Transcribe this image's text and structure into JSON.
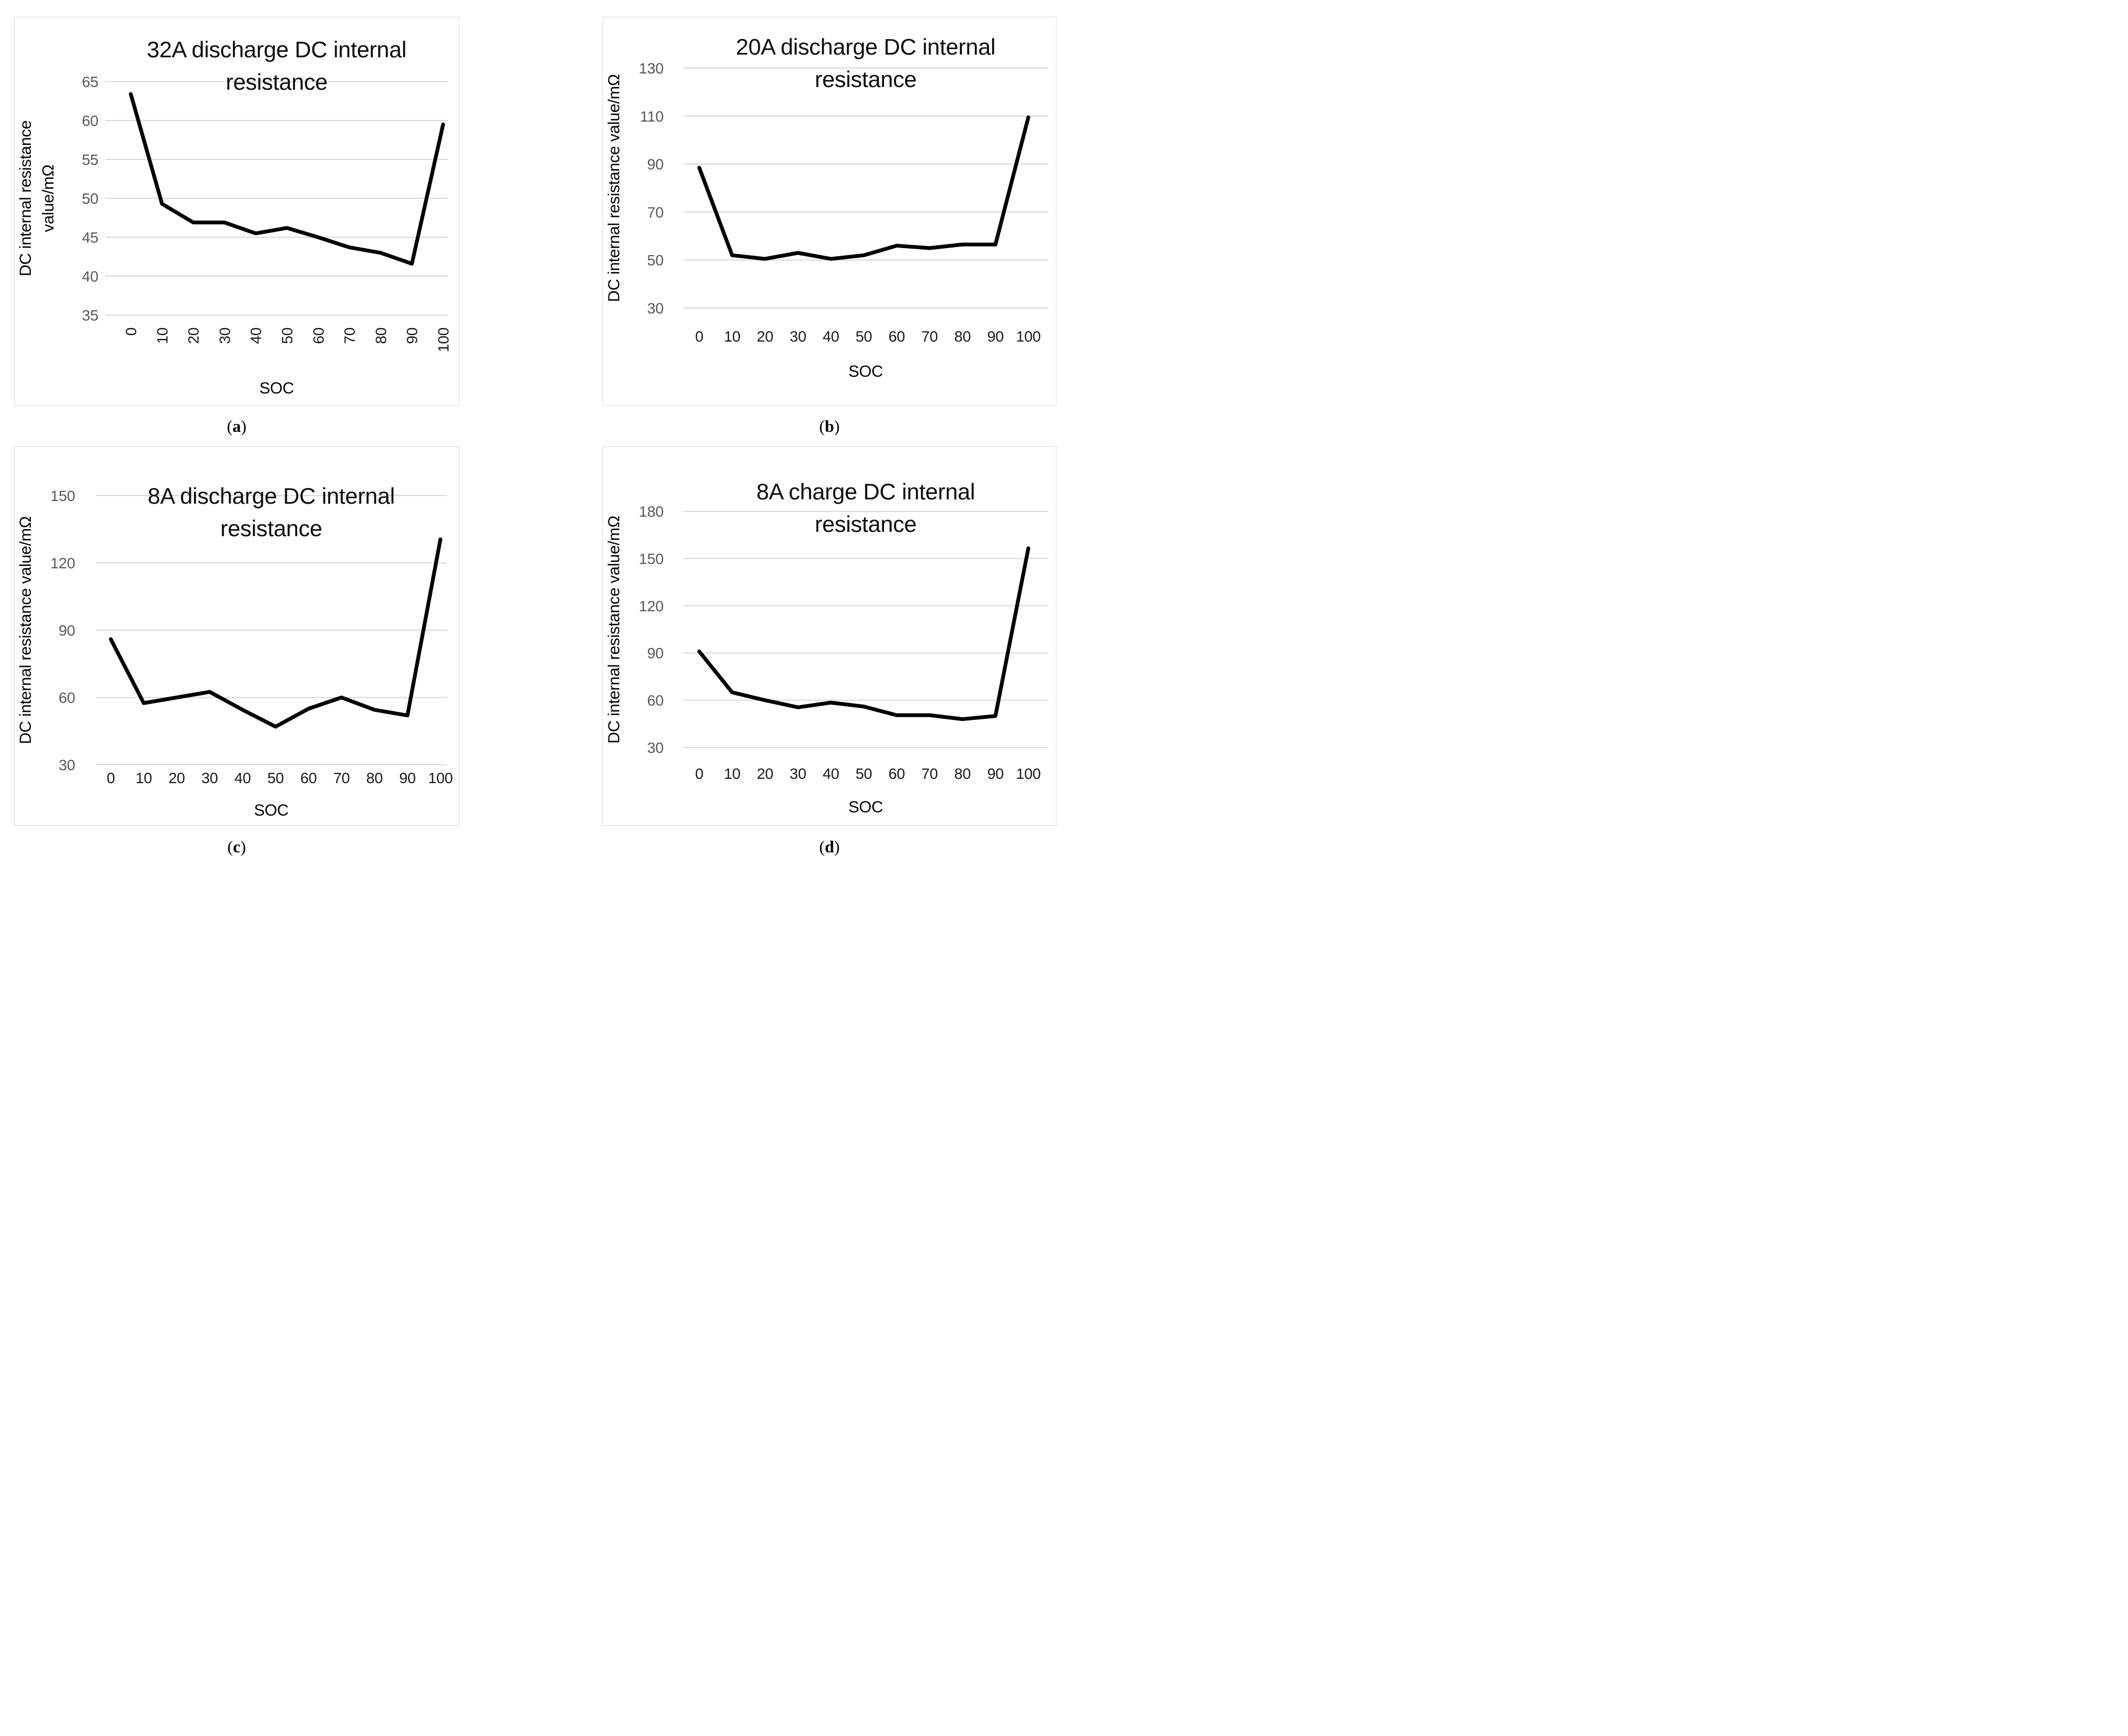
{
  "colors": {
    "background": "#ffffff",
    "panel_border": "#d9d9d9",
    "gridline": "#d9d9d9",
    "series_line": "#000000",
    "y_tick_label": "#595959",
    "x_tick_label": "#1a1a1a",
    "chart_title": "#0d0d0d",
    "axis_title": "#000000"
  },
  "captions": [
    {
      "open": "(",
      "letter": "a",
      "close": ")"
    },
    {
      "open": "(",
      "letter": "b",
      "close": ")"
    },
    {
      "open": "(",
      "letter": "c",
      "close": ")"
    },
    {
      "open": "(",
      "letter": "d",
      "close": ")"
    }
  ],
  "chart_data": [
    {
      "type": "line",
      "panel": "a",
      "title_lines": [
        "32A discharge DC internal",
        "resistance"
      ],
      "y_axis_title_lines": [
        "DC internal resistance",
        "value/mΩ"
      ],
      "x_axis_title": "SOC",
      "categories": [
        0,
        10,
        20,
        30,
        40,
        50,
        60,
        70,
        80,
        90,
        100
      ],
      "values": [
        63.4,
        49.3,
        46.9,
        46.9,
        45.5,
        46.2,
        45.0,
        43.7,
        43.0,
        41.6,
        59.5
      ],
      "ylim": [
        35,
        65
      ],
      "yticks": [
        35,
        40,
        45,
        50,
        55,
        60,
        65
      ],
      "x_tick_rotation": 90,
      "grid": "horizontal",
      "legend": "none"
    },
    {
      "type": "line",
      "panel": "b",
      "title_lines": [
        "20A discharge DC internal",
        "resistance"
      ],
      "y_axis_title_lines": [
        "DC internal resistance value/mΩ"
      ],
      "x_axis_title": "SOC",
      "categories": [
        0,
        10,
        20,
        30,
        40,
        50,
        60,
        70,
        80,
        90,
        100
      ],
      "values": [
        88.5,
        52.0,
        50.5,
        53.0,
        50.5,
        52.0,
        56.0,
        55.0,
        56.5,
        56.5,
        109.5
      ],
      "ylim": [
        30,
        130
      ],
      "yticks": [
        30,
        50,
        70,
        90,
        110,
        130
      ],
      "x_tick_rotation": 0,
      "grid": "horizontal",
      "legend": "none"
    },
    {
      "type": "line",
      "panel": "c",
      "title_lines": [
        "8A discharge DC internal",
        "resistance"
      ],
      "y_axis_title_lines": [
        "DC internal resistance value/mΩ"
      ],
      "x_axis_title": "SOC",
      "categories": [
        0,
        10,
        20,
        30,
        40,
        50,
        60,
        70,
        80,
        90,
        100
      ],
      "values": [
        86.0,
        57.5,
        60.0,
        62.5,
        54.5,
        47.0,
        55.0,
        60.0,
        54.5,
        52.0,
        130.5
      ],
      "ylim": [
        30,
        150
      ],
      "yticks": [
        30,
        60,
        90,
        120,
        150
      ],
      "x_tick_rotation": 0,
      "grid": "horizontal",
      "legend": "none"
    },
    {
      "type": "line",
      "panel": "d",
      "title_lines": [
        "8A charge DC internal",
        "resistance"
      ],
      "y_axis_title_lines": [
        "DC internal resistance value/mΩ"
      ],
      "x_axis_title": "SOC",
      "categories": [
        0,
        10,
        20,
        30,
        40,
        50,
        60,
        70,
        80,
        90,
        100
      ],
      "values": [
        91.0,
        65.0,
        60.0,
        55.5,
        58.5,
        56.0,
        50.5,
        50.5,
        48.0,
        50.0,
        156.5
      ],
      "ylim": [
        30,
        180
      ],
      "yticks": [
        30,
        60,
        90,
        120,
        150,
        180
      ],
      "x_tick_rotation": 0,
      "grid": "horizontal",
      "legend": "none"
    }
  ]
}
